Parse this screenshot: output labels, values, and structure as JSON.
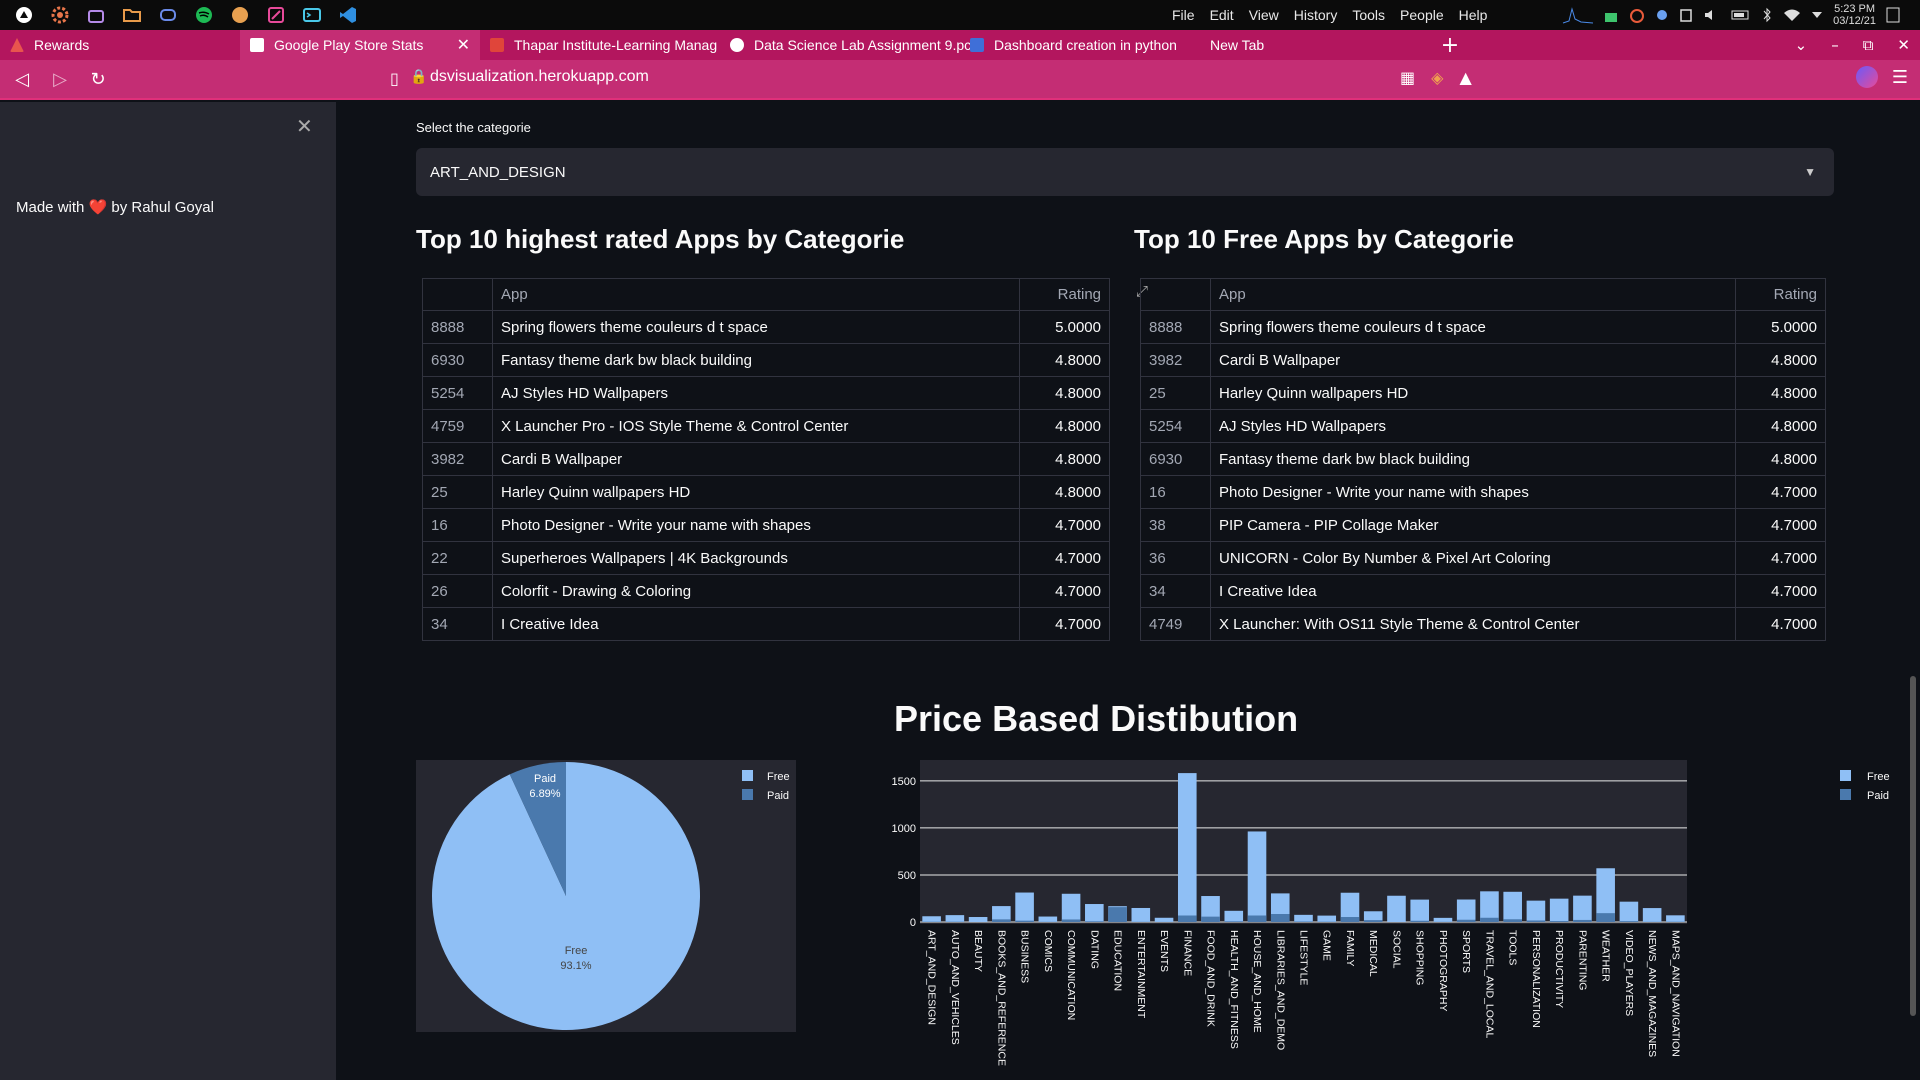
{
  "os": {
    "menu": [
      "File",
      "Edit",
      "View",
      "History",
      "Tools",
      "People",
      "Help"
    ],
    "clock_time": "5:23 PM",
    "clock_date": "03/12/21"
  },
  "tabs": [
    {
      "label": "Rewards",
      "active": false,
      "fav_color": "#e8554e"
    },
    {
      "label": "Google Play Store Stats",
      "active": true,
      "fav_color": "#ffffff"
    },
    {
      "label": "Thapar Institute-Learning Manag",
      "active": false,
      "fav_color": "#e0453a"
    },
    {
      "label": "Data Science Lab Assignment 9.pc",
      "active": false,
      "fav_color": "#ffffff"
    },
    {
      "label": "Dashboard creation in python",
      "active": false,
      "fav_color": "#3f6fd8"
    },
    {
      "label": "New Tab",
      "active": false,
      "fav_color": ""
    }
  ],
  "address": {
    "url": "dsvisualization.herokuapp.com"
  },
  "sidebar": {
    "made_with": "Made with ❤️ by Rahul Goyal"
  },
  "main": {
    "select_label": "Select the categorie",
    "select_value": "ART_AND_DESIGN",
    "rated_title": "Top 10 highest rated Apps by Categorie",
    "free_title": "Top 10 Free Apps by Categorie",
    "col_app": "App",
    "col_rating": "Rating",
    "chart_title": "Price Based Distibution"
  },
  "rated_rows": [
    {
      "idx": "8888",
      "app": "Spring flowers theme couleurs d t space",
      "rating": "5.0000"
    },
    {
      "idx": "6930",
      "app": "Fantasy theme dark bw black building",
      "rating": "4.8000"
    },
    {
      "idx": "5254",
      "app": "AJ Styles HD Wallpapers",
      "rating": "4.8000"
    },
    {
      "idx": "4759",
      "app": "X Launcher Pro - IOS Style Theme & Control Center",
      "rating": "4.8000"
    },
    {
      "idx": "3982",
      "app": "Cardi B Wallpaper",
      "rating": "4.8000"
    },
    {
      "idx": "25",
      "app": "Harley Quinn wallpapers HD",
      "rating": "4.8000"
    },
    {
      "idx": "16",
      "app": "Photo Designer - Write your name with shapes",
      "rating": "4.7000"
    },
    {
      "idx": "22",
      "app": "Superheroes Wallpapers | 4K Backgrounds",
      "rating": "4.7000"
    },
    {
      "idx": "26",
      "app": "Colorfit - Drawing & Coloring",
      "rating": "4.7000"
    },
    {
      "idx": "34",
      "app": "I Creative Idea",
      "rating": "4.7000"
    }
  ],
  "free_rows": [
    {
      "idx": "8888",
      "app": "Spring flowers theme couleurs d t space",
      "rating": "5.0000"
    },
    {
      "idx": "3982",
      "app": "Cardi B Wallpaper",
      "rating": "4.8000"
    },
    {
      "idx": "25",
      "app": "Harley Quinn wallpapers HD",
      "rating": "4.8000"
    },
    {
      "idx": "5254",
      "app": "AJ Styles HD Wallpapers",
      "rating": "4.8000"
    },
    {
      "idx": "6930",
      "app": "Fantasy theme dark bw black building",
      "rating": "4.8000"
    },
    {
      "idx": "16",
      "app": "Photo Designer - Write your name with shapes",
      "rating": "4.7000"
    },
    {
      "idx": "38",
      "app": "PIP Camera - PIP Collage Maker",
      "rating": "4.7000"
    },
    {
      "idx": "36",
      "app": "UNICORN - Color By Number & Pixel Art Coloring",
      "rating": "4.7000"
    },
    {
      "idx": "34",
      "app": "I Creative Idea",
      "rating": "4.7000"
    },
    {
      "idx": "4749",
      "app": "X Launcher: With OS11 Style Theme & Control Center",
      "rating": "4.7000"
    }
  ],
  "colors": {
    "free": "#8fbff5",
    "paid": "#4a79ad",
    "plot_bg": "#262730"
  },
  "chart_data": [
    {
      "type": "pie",
      "labels": [
        "Free",
        "Paid"
      ],
      "values": [
        93.1,
        6.89
      ],
      "slice_labels": [
        "Free\n93.1%",
        "Paid\n6.89%"
      ],
      "legend": [
        "Free",
        "Paid"
      ]
    },
    {
      "type": "bar",
      "stacked": true,
      "categories": [
        "ART_AND_DESIGN",
        "AUTO_AND_VEHICLES",
        "BEAUTY",
        "BOOKS_AND_REFERENCE",
        "BUSINESS",
        "COMICS",
        "COMMUNICATION",
        "DATING",
        "EDUCATION",
        "ENTERTAINMENT",
        "EVENTS",
        "FINANCE",
        "FOOD_AND_DRINK",
        "HEALTH_AND_FITNESS",
        "HOUSE_AND_HOME",
        "LIBRARIES_AND_DEMO",
        "LIFESTYLE",
        "GAME",
        "FAMILY",
        "MEDICAL",
        "SOCIAL",
        "SHOPPING",
        "PHOTOGRAPHY",
        "SPORTS",
        "TRAVEL_AND_LOCAL",
        "TOOLS",
        "PERSONALIZATION",
        "PRODUCTIVITY",
        "PARENTING",
        "WEATHER",
        "VIDEO_PLAYERS",
        "NEWS_AND_MAGAZINES",
        "MAPS_AND_NAVIGATION"
      ],
      "series": [
        {
          "name": "Free",
          "values": [
            61,
            73,
            53,
            169,
            313,
            58,
            300,
            191,
            168,
            149,
            45,
            1582,
            276,
            119,
            962,
            304,
            76,
            68,
            311,
            114,
            279,
            238,
            44,
            239,
            326,
            321,
            227,
            248,
            280,
            571,
            216,
            148,
            71
          ]
        },
        {
          "name": "Paid",
          "values": [
            3,
            3,
            0,
            28,
            14,
            2,
            27,
            7,
            158,
            2,
            1,
            69,
            57,
            7,
            69,
            85,
            5,
            3,
            53,
            20,
            0,
            13,
            2,
            24,
            45,
            29,
            16,
            10,
            22,
            94,
            9,
            2,
            3
          ]
        }
      ],
      "yticks": [
        "0",
        "500",
        "1000",
        "1500"
      ],
      "ylim": [
        0,
        1700
      ],
      "legend": [
        "Free",
        "Paid"
      ]
    }
  ]
}
